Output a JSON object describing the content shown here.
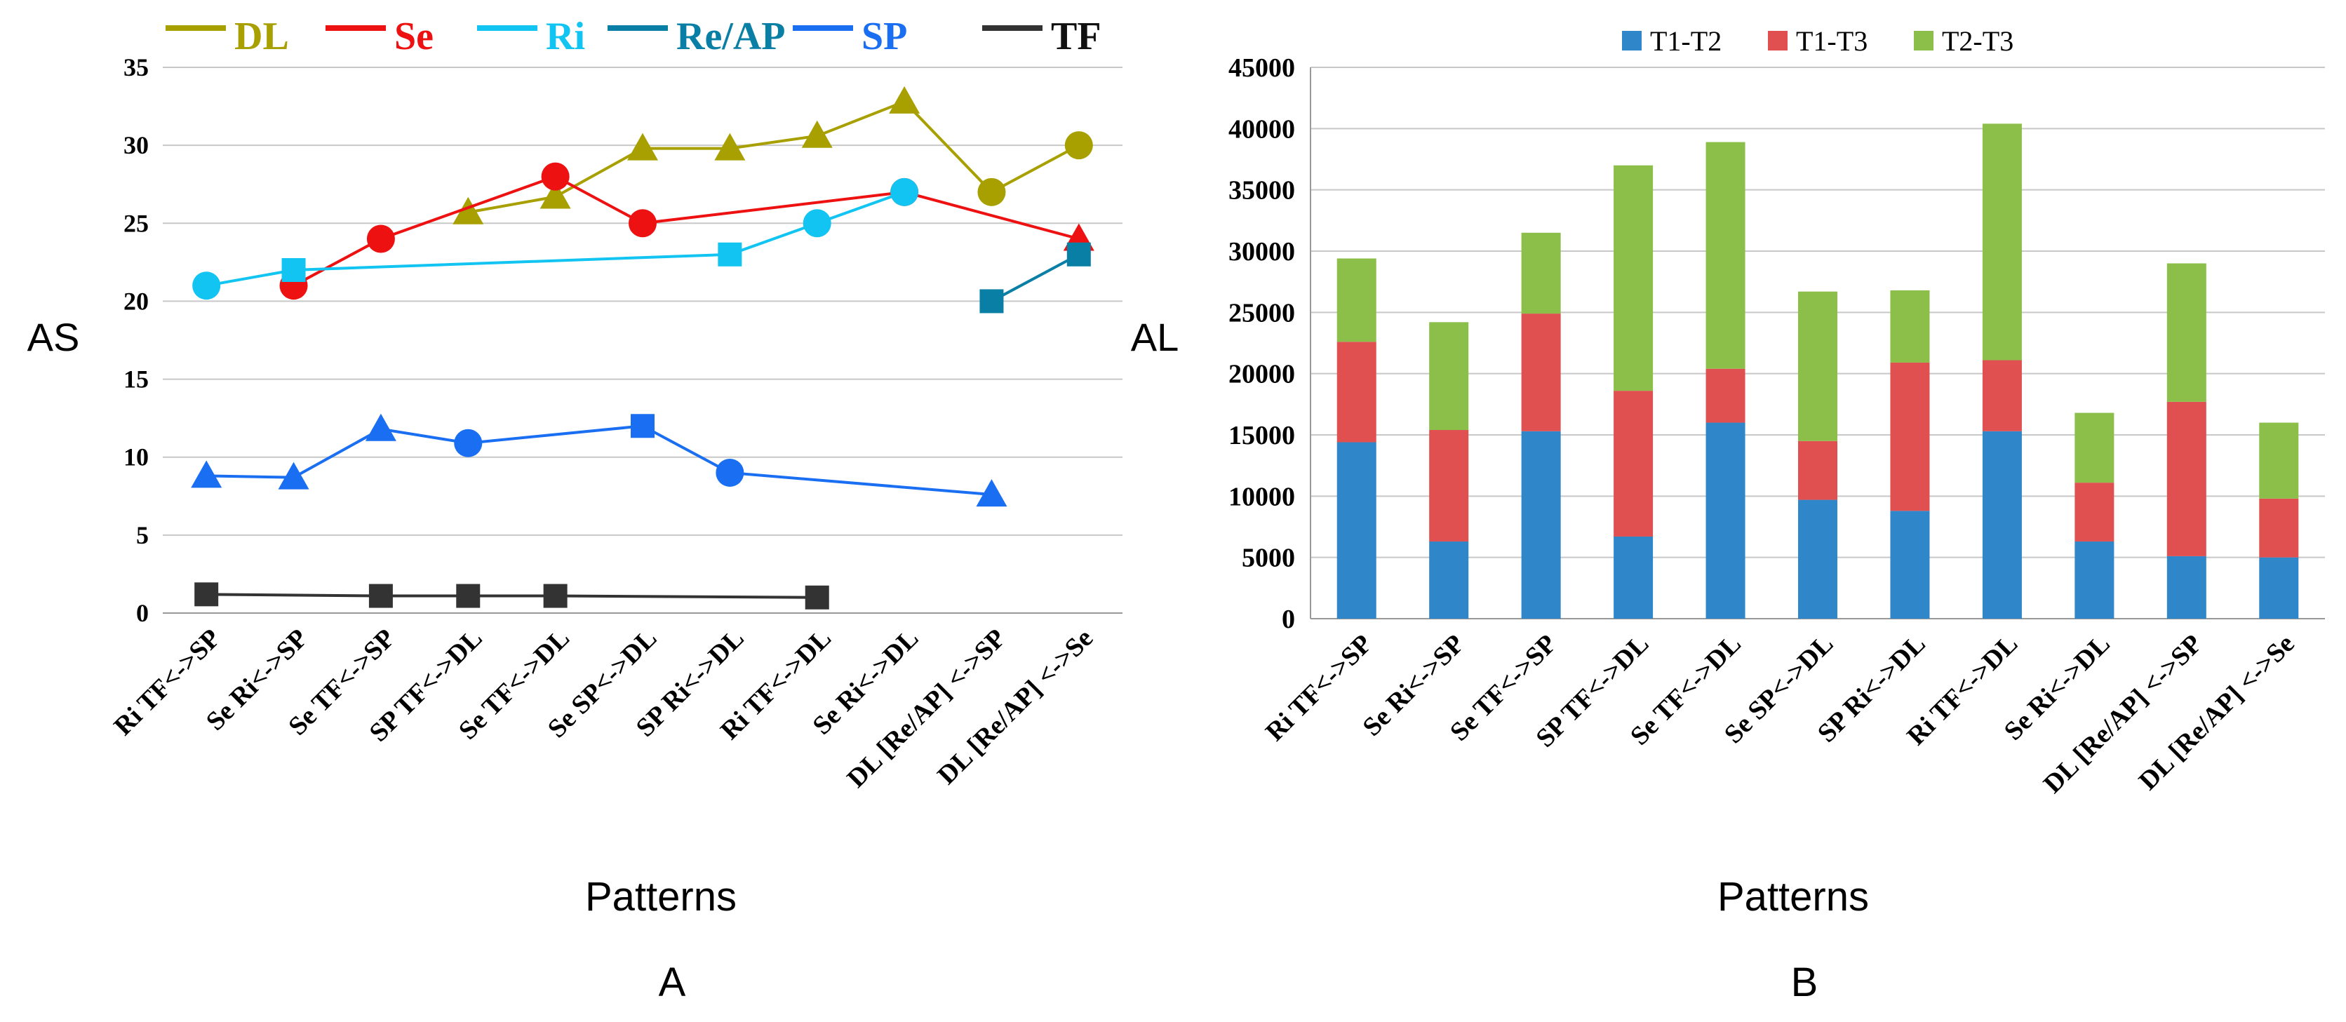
{
  "chart_data": [
    {
      "panel_label": "A",
      "type": "line",
      "ylabel": "AS",
      "xlabel": "Patterns",
      "ylim": [
        0,
        35
      ],
      "yticks": [
        0,
        5,
        10,
        15,
        20,
        25,
        30,
        35
      ],
      "grid": true,
      "legend_position": "top",
      "categories": [
        "Ri  TF<->SP",
        "Se  Ri<->SP",
        "Se  TF<->SP",
        "SP  TF<->DL",
        "Se  TF<->DL",
        "Se  SP<->DL",
        "SP  Ri<->DL",
        "Ri  TF<->DL",
        "Se  Ri<->DL",
        "DL  [Re/AP] <->SP",
        "DL  [Re/AP] <->Se"
      ],
      "series": [
        {
          "name": "DL",
          "color": "#a8a000",
          "points": [
            [
              3,
              25.7,
              "triangle"
            ],
            [
              4,
              26.7,
              "triangle"
            ],
            [
              5,
              29.8,
              "triangle"
            ],
            [
              6,
              29.8,
              "triangle"
            ],
            [
              7,
              30.6,
              "triangle"
            ],
            [
              8,
              32.8,
              "triangle"
            ],
            [
              9,
              27.0,
              "circle"
            ],
            [
              10,
              30.0,
              "circle"
            ]
          ]
        },
        {
          "name": "Se",
          "color": "#ee1111",
          "points": [
            [
              1,
              21.0,
              "circle"
            ],
            [
              2,
              24.0,
              "circle"
            ],
            [
              4,
              28.0,
              "circle"
            ],
            [
              5,
              25.0,
              "circle"
            ],
            [
              8,
              27.0,
              "circle"
            ],
            [
              10,
              24.0,
              "triangle"
            ]
          ]
        },
        {
          "name": "Ri",
          "color": "#11c4f2",
          "points": [
            [
              0,
              21.0,
              "circle"
            ],
            [
              1,
              22.0,
              "square"
            ],
            [
              6,
              23.0,
              "square"
            ],
            [
              7,
              25.0,
              "circle"
            ],
            [
              8,
              27.0,
              "circle"
            ]
          ]
        },
        {
          "name": "Re/AP",
          "color": "#0a7fa6",
          "points": [
            [
              9,
              20.0,
              "square"
            ],
            [
              10,
              23.0,
              "square"
            ]
          ]
        },
        {
          "name": "SP",
          "color": "#1a6ef2",
          "points": [
            [
              0,
              8.8,
              "triangle"
            ],
            [
              1,
              8.7,
              "triangle"
            ],
            [
              2,
              11.8,
              "triangle"
            ],
            [
              3,
              10.9,
              "circle"
            ],
            [
              5,
              12.0,
              "square"
            ],
            [
              6,
              9.0,
              "circle"
            ],
            [
              9,
              7.6,
              "triangle"
            ]
          ]
        },
        {
          "name": "TF",
          "color": "#333333",
          "points": [
            [
              0,
              1.2,
              "square"
            ],
            [
              2,
              1.1,
              "square"
            ],
            [
              3,
              1.1,
              "square"
            ],
            [
              4,
              1.1,
              "square"
            ],
            [
              7,
              1.0,
              "square"
            ]
          ]
        }
      ]
    },
    {
      "panel_label": "B",
      "type": "bar",
      "stacked": true,
      "ylabel": "AL",
      "xlabel": "Patterns",
      "ylim": [
        0,
        45000
      ],
      "yticks": [
        0,
        5000,
        10000,
        15000,
        20000,
        25000,
        30000,
        35000,
        40000,
        45000
      ],
      "grid": true,
      "legend_position": "top",
      "categories": [
        "Ri  TF<->SP",
        "Se  Ri<->SP",
        "Se  TF<->SP",
        "SP  TF<->DL",
        "Se  TF<->DL",
        "Se  SP<->DL",
        "SP  Ri<->DL",
        "Ri  TF<->DL",
        "Se  Ri<->DL",
        "DL  [Re/AP] <->SP",
        "DL  [Re/AP] <->Se"
      ],
      "series": [
        {
          "name": "T1-T2",
          "color": "#2f86c8",
          "values": [
            14400,
            6300,
            15300,
            6700,
            16000,
            9700,
            8800,
            15300,
            6300,
            5100,
            5000
          ]
        },
        {
          "name": "T1-T3",
          "color": "#e05050",
          "values": [
            8200,
            9100,
            9600,
            11900,
            4400,
            4800,
            12100,
            5800,
            4800,
            12600,
            4800
          ]
        },
        {
          "name": "T2-T3",
          "color": "#8cbf4a",
          "values": [
            6800,
            8800,
            6600,
            18400,
            18500,
            12200,
            5900,
            19300,
            5700,
            11300,
            6200
          ]
        }
      ]
    }
  ]
}
